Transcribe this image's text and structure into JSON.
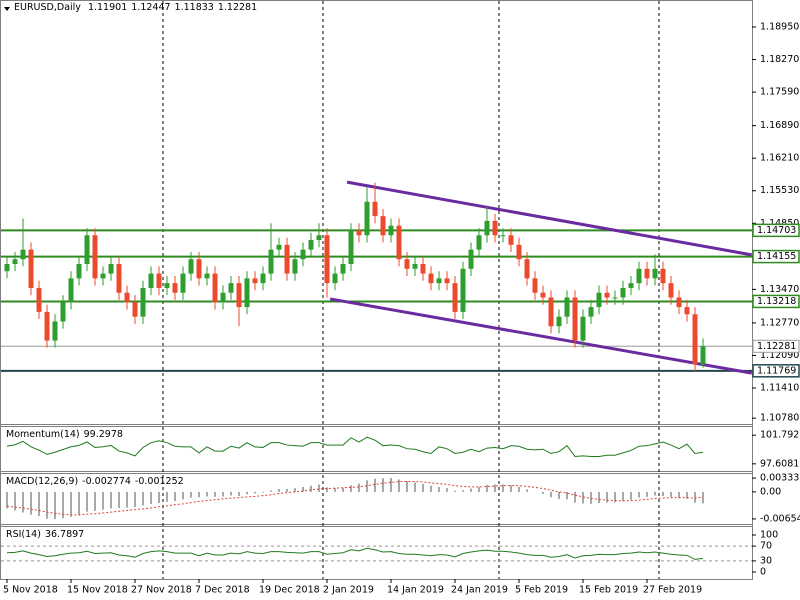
{
  "chart_data": [
    {
      "type": "candlestick",
      "symbol": "EURUSD,Daily",
      "categories": [
        "5 Nov 2018",
        null,
        null,
        null,
        null,
        null,
        null,
        null,
        "15 Nov 2018",
        null,
        null,
        null,
        null,
        null,
        null,
        null,
        "27 Nov 2018",
        null,
        null,
        null,
        null,
        null,
        null,
        null,
        "7 Dec 2018",
        null,
        null,
        null,
        null,
        null,
        null,
        null,
        "19 Dec 2018",
        null,
        null,
        null,
        null,
        null,
        null,
        null,
        "2 Jan 2019",
        null,
        null,
        null,
        null,
        null,
        null,
        null,
        "14 Jan 2019",
        null,
        null,
        null,
        null,
        null,
        null,
        null,
        "24 Jan 2019",
        null,
        null,
        null,
        null,
        null,
        null,
        null,
        "5 Feb 2019",
        null,
        null,
        null,
        null,
        null,
        null,
        null,
        "15 Feb 2019",
        null,
        null,
        null,
        null,
        null,
        null,
        null,
        "27 Feb 2019",
        null,
        null,
        null,
        null,
        null,
        null,
        null
      ],
      "open": [
        1.1385,
        1.14,
        1.141,
        1.143,
        1.135,
        1.13,
        1.124,
        1.128,
        1.132,
        1.137,
        1.14,
        1.146,
        1.137,
        1.138,
        1.14,
        1.134,
        1.132,
        1.129,
        1.135,
        1.138,
        1.135,
        1.136,
        1.134,
        1.138,
        1.141,
        1.137,
        1.138,
        1.132,
        1.134,
        1.136,
        1.131,
        1.137,
        1.136,
        1.138,
        1.143,
        1.144,
        1.138,
        1.141,
        1.143,
        1.145,
        1.146,
        1.136,
        1.138,
        1.14,
        1.147,
        1.146,
        1.153,
        1.15,
        1.146,
        1.148,
        1.141,
        1.139,
        1.14,
        1.138,
        1.136,
        1.137,
        1.136,
        1.13,
        1.139,
        1.143,
        1.146,
        1.149,
        1.146,
        1.146,
        1.144,
        1.141,
        1.137,
        1.134,
        1.133,
        1.127,
        1.129,
        1.133,
        1.124,
        1.129,
        1.131,
        1.134,
        1.133,
        1.133,
        1.135,
        1.136,
        1.139,
        1.137,
        1.139,
        1.136,
        1.133,
        1.131,
        1.1295,
        1.11901
      ],
      "high": [
        1.1415,
        1.1425,
        1.1495,
        1.1445,
        1.1365,
        1.1315,
        1.1295,
        1.1335,
        1.1385,
        1.1415,
        1.1475,
        1.1475,
        1.1395,
        1.1415,
        1.1415,
        1.1355,
        1.1335,
        1.1365,
        1.1395,
        1.1395,
        1.1375,
        1.1375,
        1.1395,
        1.1425,
        1.1425,
        1.1395,
        1.1395,
        1.1355,
        1.1375,
        1.1375,
        1.1385,
        1.1385,
        1.1395,
        1.1485,
        1.1455,
        1.1455,
        1.1425,
        1.1445,
        1.1465,
        1.1485,
        1.1475,
        1.1395,
        1.1415,
        1.1485,
        1.1485,
        1.156,
        1.157,
        1.1515,
        1.1495,
        1.1495,
        1.1425,
        1.1415,
        1.1415,
        1.1395,
        1.1385,
        1.1385,
        1.1375,
        1.1405,
        1.1445,
        1.1475,
        1.152,
        1.1505,
        1.1475,
        1.1475,
        1.1455,
        1.1425,
        1.1385,
        1.1355,
        1.1345,
        1.1305,
        1.1345,
        1.1345,
        1.1305,
        1.1325,
        1.1355,
        1.1355,
        1.1345,
        1.1365,
        1.1375,
        1.1405,
        1.1405,
        1.142,
        1.1405,
        1.1375,
        1.1345,
        1.1325,
        1.131,
        1.12447
      ],
      "low": [
        1.137,
        1.1385,
        1.1395,
        1.1335,
        1.1285,
        1.1225,
        1.1225,
        1.1265,
        1.1305,
        1.1355,
        1.1385,
        1.1355,
        1.1355,
        1.1365,
        1.1325,
        1.1305,
        1.1275,
        1.1275,
        1.1335,
        1.1335,
        1.1335,
        1.1325,
        1.1325,
        1.1365,
        1.1355,
        1.1355,
        1.1305,
        1.1305,
        1.1325,
        1.127,
        1.1295,
        1.1345,
        1.1345,
        1.1365,
        1.1415,
        1.1365,
        1.1365,
        1.1395,
        1.1415,
        1.1435,
        1.133,
        1.1345,
        1.1365,
        1.1385,
        1.1445,
        1.1445,
        1.1485,
        1.1445,
        1.1445,
        1.1395,
        1.1375,
        1.1375,
        1.1365,
        1.1345,
        1.1345,
        1.1345,
        1.1285,
        1.1285,
        1.1375,
        1.1415,
        1.1445,
        1.1445,
        1.1445,
        1.1425,
        1.1395,
        1.1355,
        1.1325,
        1.1315,
        1.1255,
        1.1255,
        1.1275,
        1.1225,
        1.1225,
        1.1275,
        1.1295,
        1.1315,
        1.1315,
        1.1315,
        1.1335,
        1.1345,
        1.1355,
        1.1355,
        1.1345,
        1.1315,
        1.1295,
        1.128,
        1.1175,
        1.11833
      ],
      "close": [
        1.14,
        1.141,
        1.143,
        1.135,
        1.13,
        1.124,
        1.128,
        1.132,
        1.137,
        1.14,
        1.146,
        1.137,
        1.138,
        1.14,
        1.134,
        1.132,
        1.129,
        1.135,
        1.138,
        1.135,
        1.136,
        1.134,
        1.138,
        1.141,
        1.137,
        1.138,
        1.132,
        1.134,
        1.136,
        1.131,
        1.137,
        1.136,
        1.138,
        1.143,
        1.144,
        1.138,
        1.141,
        1.143,
        1.145,
        1.146,
        1.136,
        1.138,
        1.14,
        1.147,
        1.146,
        1.153,
        1.15,
        1.146,
        1.148,
        1.141,
        1.139,
        1.14,
        1.138,
        1.136,
        1.137,
        1.136,
        1.13,
        1.139,
        1.143,
        1.146,
        1.149,
        1.146,
        1.146,
        1.144,
        1.141,
        1.137,
        1.134,
        1.133,
        1.127,
        1.129,
        1.133,
        1.124,
        1.129,
        1.131,
        1.134,
        1.133,
        1.133,
        1.135,
        1.136,
        1.139,
        1.137,
        1.139,
        1.136,
        1.133,
        1.131,
        1.1295,
        1.11901,
        1.12281
      ],
      "up_color": "#2e9e2e",
      "down_color": "#ec4a2c",
      "ylim": [
        1.10679,
        1.19514
      ],
      "yticks": [
        {
          "value": 1.1078,
          "label": "1.10780"
        },
        {
          "value": 1.1141,
          "label": "1.11410"
        },
        {
          "value": 1.1209,
          "label": "1.12090"
        },
        {
          "value": 1.1277,
          "label": "1.12770"
        },
        {
          "value": 1.1347,
          "label": "1.13470"
        },
        {
          "value": 1.1415,
          "label": "1.14150"
        },
        {
          "value": 1.1485,
          "label": "1.14850"
        },
        {
          "value": 1.1553,
          "label": "1.15530"
        },
        {
          "value": 1.1621,
          "label": "1.16210"
        },
        {
          "value": 1.1689,
          "label": "1.16890"
        },
        {
          "value": 1.1759,
          "label": "1.17590"
        },
        {
          "value": 1.1827,
          "label": "1.18270"
        },
        {
          "value": 1.1895,
          "label": "1.18950"
        }
      ],
      "levels": [
        {
          "value": 1.14703,
          "color": "#2f8a1f"
        },
        {
          "value": 1.14155,
          "color": "#2f8a1f"
        },
        {
          "value": 1.13218,
          "color": "#2f8a1f"
        },
        {
          "value": 1.11769,
          "color": "#24464f"
        }
      ],
      "last_price_color": "#9a9a9a",
      "trendlines": [
        {
          "x": [
            42.5,
            93.1
          ],
          "y": [
            1.1571,
            1.1419
          ]
        },
        {
          "x": [
            40.4,
            93.1
          ],
          "y": [
            1.1327,
            1.1172
          ]
        }
      ],
      "trendline_color": "#6a2aa0",
      "month_starts": [
        20,
        40,
        62,
        82
      ]
    },
    {
      "type": "line",
      "name": "Momentum(14)",
      "color": "#1f7a1f",
      "values": [
        100.2,
        100.4,
        100.9,
        100.1,
        99.6,
        99.0,
        99.3,
        99.7,
        100.1,
        100.3,
        100.8,
        100.0,
        100.1,
        100.3,
        99.47,
        99.21,
        98.77,
        100.0,
        100.7,
        100.97,
        100.7,
        100.18,
        100.09,
        100.09,
        99.21,
        100.09,
        99.47,
        99.47,
        100.18,
        99.91,
        100.7,
        100.09,
        100.0,
        100.7,
        100.7,
        100.35,
        100.26,
        100.18,
        100.7,
        100.7,
        100.35,
        100.35,
        100.35,
        101.41,
        100.79,
        101.5,
        101.06,
        100.26,
        100.35,
        100.26,
        99.82,
        99.74,
        99.38,
        99.12,
        100.09,
        99.82,
        99.12,
        99.3,
        99.74,
        99.38,
        99.91,
        100.0,
        99.82,
        100.26,
        100.18,
        99.74,
        99.65,
        99.74,
        99.12,
        99.38,
        100.26,
        98.68,
        98.77,
        98.68,
        98.68,
        98.86,
        98.86,
        99.21,
        99.56,
        100.18,
        100.26,
        100.53,
        100.79,
        100.35,
        99.82,
        100.48,
        99.12,
        99.2978
      ],
      "ylim": [
        96.562,
        102.988
      ],
      "yticks": [
        97.6081,
        101.7923
      ]
    },
    {
      "type": "macd",
      "name": "MACD(12,26,9)",
      "color": "#8a8a8a",
      "signal_color": "#e0402f",
      "values": [
        -0.004,
        -0.0045,
        -0.005,
        -0.0055,
        -0.0058,
        -0.0065,
        -0.0066,
        -0.0064,
        -0.006,
        -0.0055,
        -0.0048,
        -0.0046,
        -0.0043,
        -0.004,
        -0.0039,
        -0.0038,
        -0.0037,
        -0.0033,
        -0.0029,
        -0.0027,
        -0.0024,
        -0.0022,
        -0.0018,
        -0.0014,
        -0.0013,
        -0.0011,
        -0.0012,
        -0.0011,
        -0.0009,
        -0.001,
        -0.0006,
        -0.0004,
        -0.0002,
        0.0003,
        0.0007,
        0.0007,
        0.0009,
        0.0012,
        0.0015,
        0.0018,
        0.0011,
        0.0009,
        0.001,
        0.0016,
        0.002,
        0.0028,
        0.0032,
        0.0033,
        0.0034,
        0.003,
        0.0026,
        0.0023,
        0.0019,
        0.0015,
        0.0012,
        0.0009,
        0.0003,
        0.0004,
        0.0008,
        0.0012,
        0.0017,
        0.0018,
        0.0018,
        0.0016,
        0.0012,
        0.0006,
        0.0,
        -0.0005,
        -0.0013,
        -0.0017,
        -0.0018,
        -0.0026,
        -0.0028,
        -0.0029,
        -0.0027,
        -0.0026,
        -0.0025,
        -0.0022,
        -0.0019,
        -0.0014,
        -0.0012,
        -0.0009,
        -0.001,
        -0.0012,
        -0.0015,
        -0.0017,
        -0.0026,
        -0.002774
      ],
      "signal": [
        -0.0035,
        -0.0037,
        -0.0039,
        -0.0042,
        -0.0045,
        -0.0049,
        -0.0052,
        -0.0054,
        -0.0056,
        -0.0056,
        -0.0054,
        -0.0053,
        -0.0051,
        -0.0049,
        -0.0047,
        -0.0045,
        -0.0043,
        -0.0041,
        -0.0039,
        -0.0036,
        -0.0034,
        -0.0031,
        -0.0029,
        -0.0026,
        -0.0023,
        -0.0021,
        -0.0019,
        -0.0017,
        -0.0015,
        -0.0014,
        -0.0012,
        -0.0011,
        -0.0009,
        -0.0007,
        -0.0004,
        -0.0002,
        0.0,
        0.0002,
        0.0005,
        0.0007,
        0.0008,
        0.0009,
        0.001,
        0.0011,
        0.0012,
        0.0015,
        0.0018,
        0.0021,
        0.0023,
        0.0025,
        0.0025,
        0.0025,
        0.0024,
        0.0022,
        0.002,
        0.0018,
        0.0015,
        0.0013,
        0.0012,
        0.0012,
        0.0013,
        0.0014,
        0.0015,
        0.0015,
        0.0015,
        0.0013,
        0.0011,
        0.0008,
        0.0004,
        0.0,
        -0.0003,
        -0.0008,
        -0.0012,
        -0.0016,
        -0.0018,
        -0.002,
        -0.0021,
        -0.0022,
        -0.0021,
        -0.002,
        -0.0018,
        -0.0016,
        -0.0015,
        -0.0014,
        -0.0014,
        -0.0014,
        -0.0015,
        -0.001252
      ],
      "ylim": [
        -0.007777,
        0.004326
      ],
      "yticks": [
        -0.006542,
        {
          "value": 0,
          "label": "0.00"
        },
        0.003338
      ]
    },
    {
      "type": "line",
      "name": "RSI(14)",
      "color": "#1f7a1f",
      "values": [
        52,
        53,
        57,
        51,
        47,
        42,
        44,
        48,
        51,
        52,
        56,
        50,
        51,
        52,
        46,
        44,
        40,
        50,
        55,
        57,
        55,
        51,
        51,
        51,
        44,
        51,
        46,
        46,
        51,
        49,
        55,
        51,
        50,
        55,
        55,
        53,
        52,
        51,
        55,
        55,
        48,
        50,
        52,
        60,
        57,
        64,
        60,
        54,
        55,
        50,
        48,
        48,
        46,
        44,
        47,
        46,
        41,
        50,
        54,
        57,
        59,
        56,
        56,
        54,
        51,
        47,
        45,
        45,
        40,
        42,
        47,
        38,
        44,
        45,
        48,
        47,
        47,
        50,
        51,
        54,
        52,
        54,
        51,
        48,
        46,
        45,
        34,
        36.7897
      ],
      "ylim": [
        -16.2,
        121.6
      ],
      "yticks": [
        0,
        30,
        70,
        100
      ],
      "levels": [
        30,
        70
      ]
    }
  ]
}
